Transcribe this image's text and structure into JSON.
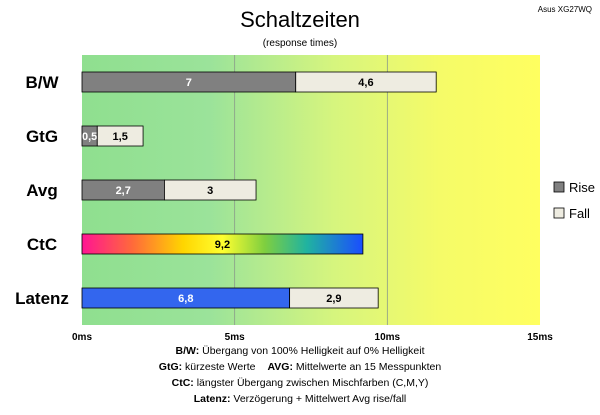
{
  "chart_data": {
    "type": "bar",
    "stacked": true,
    "orientation": "horizontal",
    "title": "Schaltzeiten",
    "subtitle": "(response times)",
    "corner_label": "Asus XG27WQ",
    "categories": [
      "B/W",
      "GtG",
      "Avg",
      "CtC",
      "Latenz"
    ],
    "series": [
      {
        "name": "Rise",
        "values": [
          7,
          0.5,
          2.7,
          9.2,
          6.8
        ],
        "labels": [
          "7",
          "0,5",
          "2,7",
          "9,2",
          "6,8"
        ]
      },
      {
        "name": "Fall",
        "values": [
          4.6,
          1.5,
          3,
          null,
          2.9
        ],
        "labels": [
          "4,6",
          "1,5",
          "3",
          "",
          "2,9"
        ]
      }
    ],
    "xlim": [
      0,
      15
    ],
    "ticks": [
      0,
      5,
      10,
      15
    ],
    "tick_labels": [
      "0ms",
      "5ms",
      "10ms",
      "15ms"
    ],
    "grid": true,
    "legend_position": "right",
    "colors": {
      "rise": "#808080",
      "fall": "#eeece1",
      "latenz_rise": "#3366ee",
      "bg_start": "#8fdf8f",
      "bg_end": "#ffff60"
    }
  },
  "notes": [
    {
      "bold": "B/W:",
      "text": "  Übergang von 100% Helligkeit auf 0% Helligkeit"
    },
    {
      "bold": "GtG:",
      "text": " kürzeste  Werte",
      "bold2": "AVG:",
      "text2": " Mittelwerte  an 15 Messpunkten"
    },
    {
      "bold": "CtC:",
      "text": " längster Übergang  zwischen Mischfarben  (C,M,Y)"
    },
    {
      "bold": "Latenz:",
      "text": " Verzögerung  + Mittelwert Avg rise/fall"
    }
  ]
}
